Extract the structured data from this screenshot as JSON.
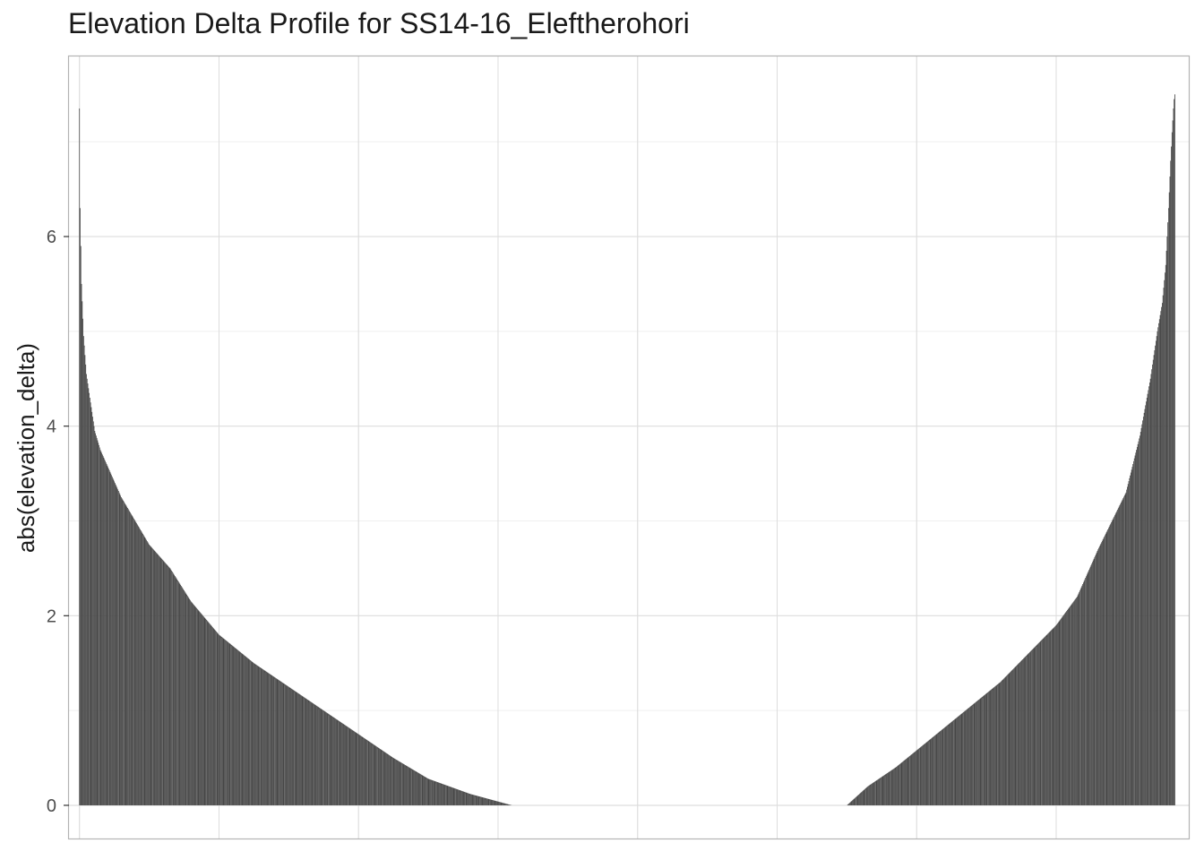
{
  "chart_data": {
    "type": "bar",
    "title": "Elevation Delta Profile for SS14-16_Eleftherohori",
    "xlabel": "",
    "ylabel": "abs(elevation_delta)",
    "ylim": [
      -0.35,
      7.9
    ],
    "xlim": [
      -15,
      1590
    ],
    "yticks": [
      0,
      2,
      4,
      6
    ],
    "grid": true,
    "legend": "none",
    "colors": {
      "bar": "#474747",
      "grid_major": "#dddddd",
      "grid_minor": "#efefef",
      "panel_border": "#b3b3b3",
      "tick_label": "#4d4d4d"
    },
    "bar_count": 1600,
    "profile": {
      "description_points": "bar_index -> abs(elevation_delta), sorted descending then ascending",
      "x": [
        0,
        1,
        3,
        6,
        10,
        15,
        22,
        30,
        45,
        60,
        80,
        100,
        130,
        160,
        200,
        250,
        300,
        350,
        400,
        450,
        500,
        560,
        620,
        640,
        1100,
        1130,
        1170,
        1220,
        1270,
        1320,
        1360,
        1400,
        1430,
        1460,
        1480,
        1500,
        1520,
        1535,
        1545,
        1552,
        1557,
        1561,
        1564,
        1566,
        1568,
        1569,
        1570
      ],
      "y": [
        7.35,
        6.3,
        5.5,
        4.95,
        4.55,
        4.3,
        3.95,
        3.75,
        3.5,
        3.25,
        3.0,
        2.75,
        2.5,
        2.15,
        1.8,
        1.5,
        1.25,
        1.0,
        0.75,
        0.5,
        0.28,
        0.12,
        0.0,
        0.0,
        0.0,
        0.2,
        0.4,
        0.7,
        1.0,
        1.3,
        1.6,
        1.9,
        2.2,
        2.7,
        3.0,
        3.3,
        3.9,
        4.5,
        5.0,
        5.3,
        5.7,
        6.3,
        6.8,
        7.1,
        7.35,
        7.45,
        7.5
      ]
    }
  }
}
